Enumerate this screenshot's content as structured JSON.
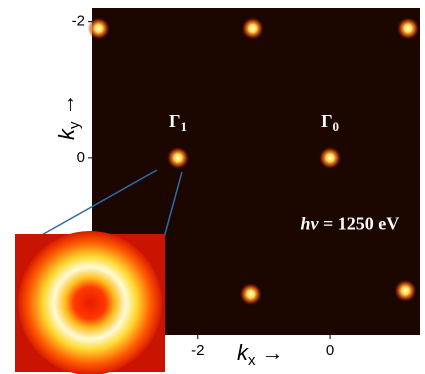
{
  "chart_data": {
    "type": "scatter",
    "x_label": {
      "main": "k",
      "sub": "x",
      "arrow": "→"
    },
    "y_label": {
      "main": "k",
      "sub": "y",
      "arrow": "→"
    },
    "xlim": [
      -3.6,
      1.36
    ],
    "ylim": [
      -2.2,
      2.6
    ],
    "xticks": [
      -2,
      0
    ],
    "yticks": [
      -2,
      0
    ],
    "y_inverted": true,
    "background": "#1c0600",
    "series": [
      {
        "color": "#ffd34a",
        "x": [
          -2.3,
          0,
          -3.5,
          -1.17,
          1.18,
          -1.2,
          1.14
        ],
        "y": [
          0,
          0,
          -1.9,
          -1.9,
          -1.9,
          2.0,
          1.95
        ]
      }
    ],
    "annotations": [
      {
        "symbol": "Γ",
        "sub": "1",
        "x": -2.3,
        "y": -0.45
      },
      {
        "symbol": "Γ",
        "sub": "0",
        "x": 0,
        "y": -0.45
      },
      {
        "italic": "hν",
        "rest": " = 1250 eV",
        "x": 0.3,
        "y": 1.05
      }
    ]
  }
}
